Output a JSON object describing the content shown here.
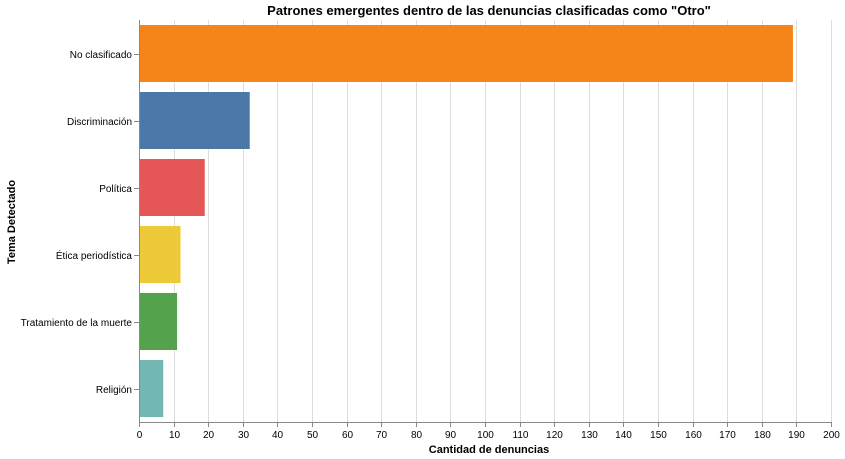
{
  "chart_data": {
    "type": "bar",
    "orientation": "horizontal",
    "title": "Patrones emergentes dentro de las denuncias clasificadas como \"Otro\"",
    "xlabel": "Cantidad de denuncias",
    "ylabel": "Tema Detectado",
    "xlim": [
      0,
      200
    ],
    "xticks": [
      0,
      10,
      20,
      30,
      40,
      50,
      60,
      70,
      80,
      90,
      100,
      110,
      120,
      130,
      140,
      150,
      160,
      170,
      180,
      190,
      200
    ],
    "grid": true,
    "categories": [
      "No clasificado",
      "Discriminación",
      "Política",
      "Ética periodística",
      "Tratamiento de la muerte",
      "Religión"
    ],
    "values": [
      189,
      32,
      19,
      12,
      11,
      7
    ],
    "colors": [
      "#f58518",
      "#4c78a8",
      "#e45756",
      "#eeca3b",
      "#54a24b",
      "#72b7b2"
    ]
  }
}
